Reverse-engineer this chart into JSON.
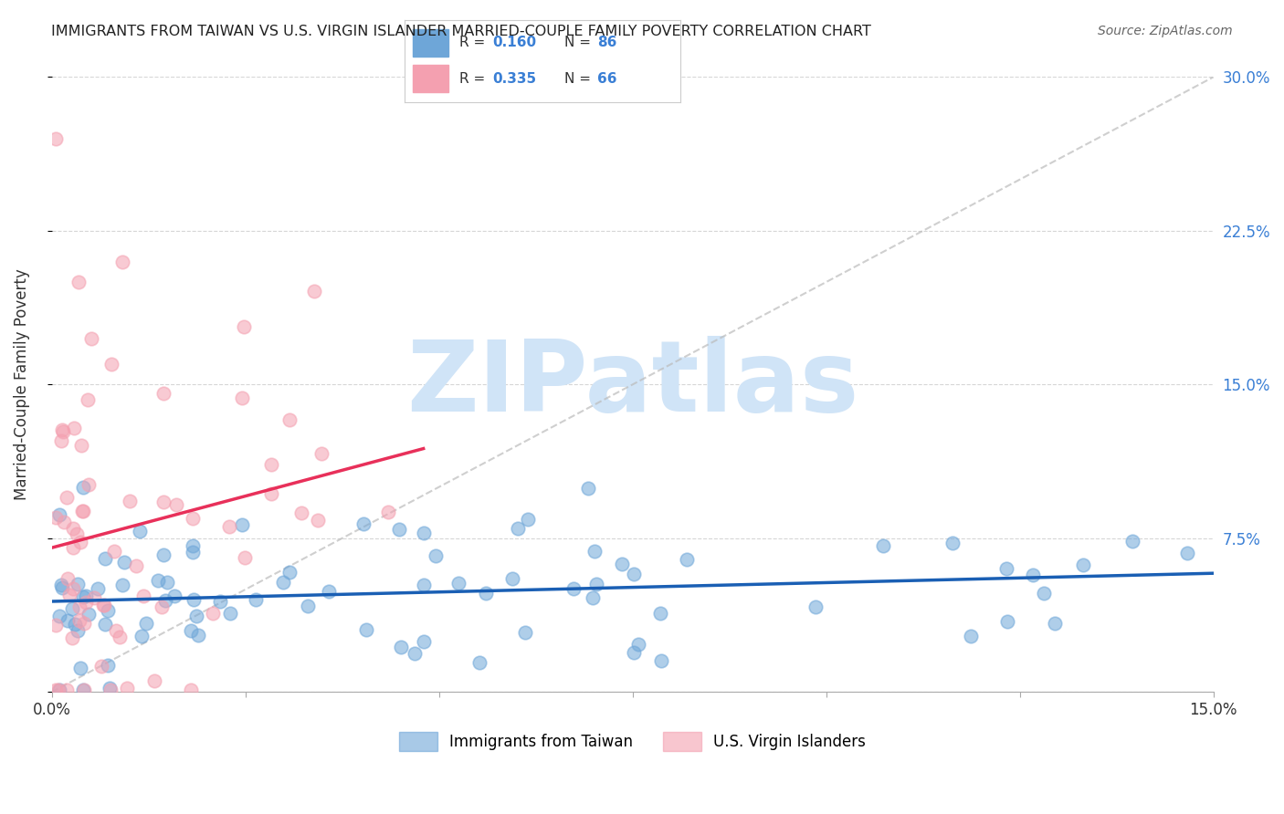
{
  "title": "IMMIGRANTS FROM TAIWAN VS U.S. VIRGIN ISLANDER MARRIED-COUPLE FAMILY POVERTY CORRELATION CHART",
  "source": "Source: ZipAtlas.com",
  "ylabel": "Married-Couple Family Poverty",
  "xlim": [
    0.0,
    0.15
  ],
  "ylim": [
    0.0,
    0.3
  ],
  "r_blue": 0.16,
  "n_blue": 86,
  "r_pink": 0.335,
  "n_pink": 66,
  "blue_color": "#6ea6d8",
  "pink_color": "#f4a0b0",
  "blue_line_color": "#1a5fb4",
  "pink_line_color": "#e8305a",
  "watermark": "ZIPatlas",
  "watermark_color": "#d0e4f7",
  "background_color": "#ffffff",
  "grid_color": "#cccccc",
  "right_tick_color": "#3a7fd5",
  "legend_box_color": "#cccccc"
}
